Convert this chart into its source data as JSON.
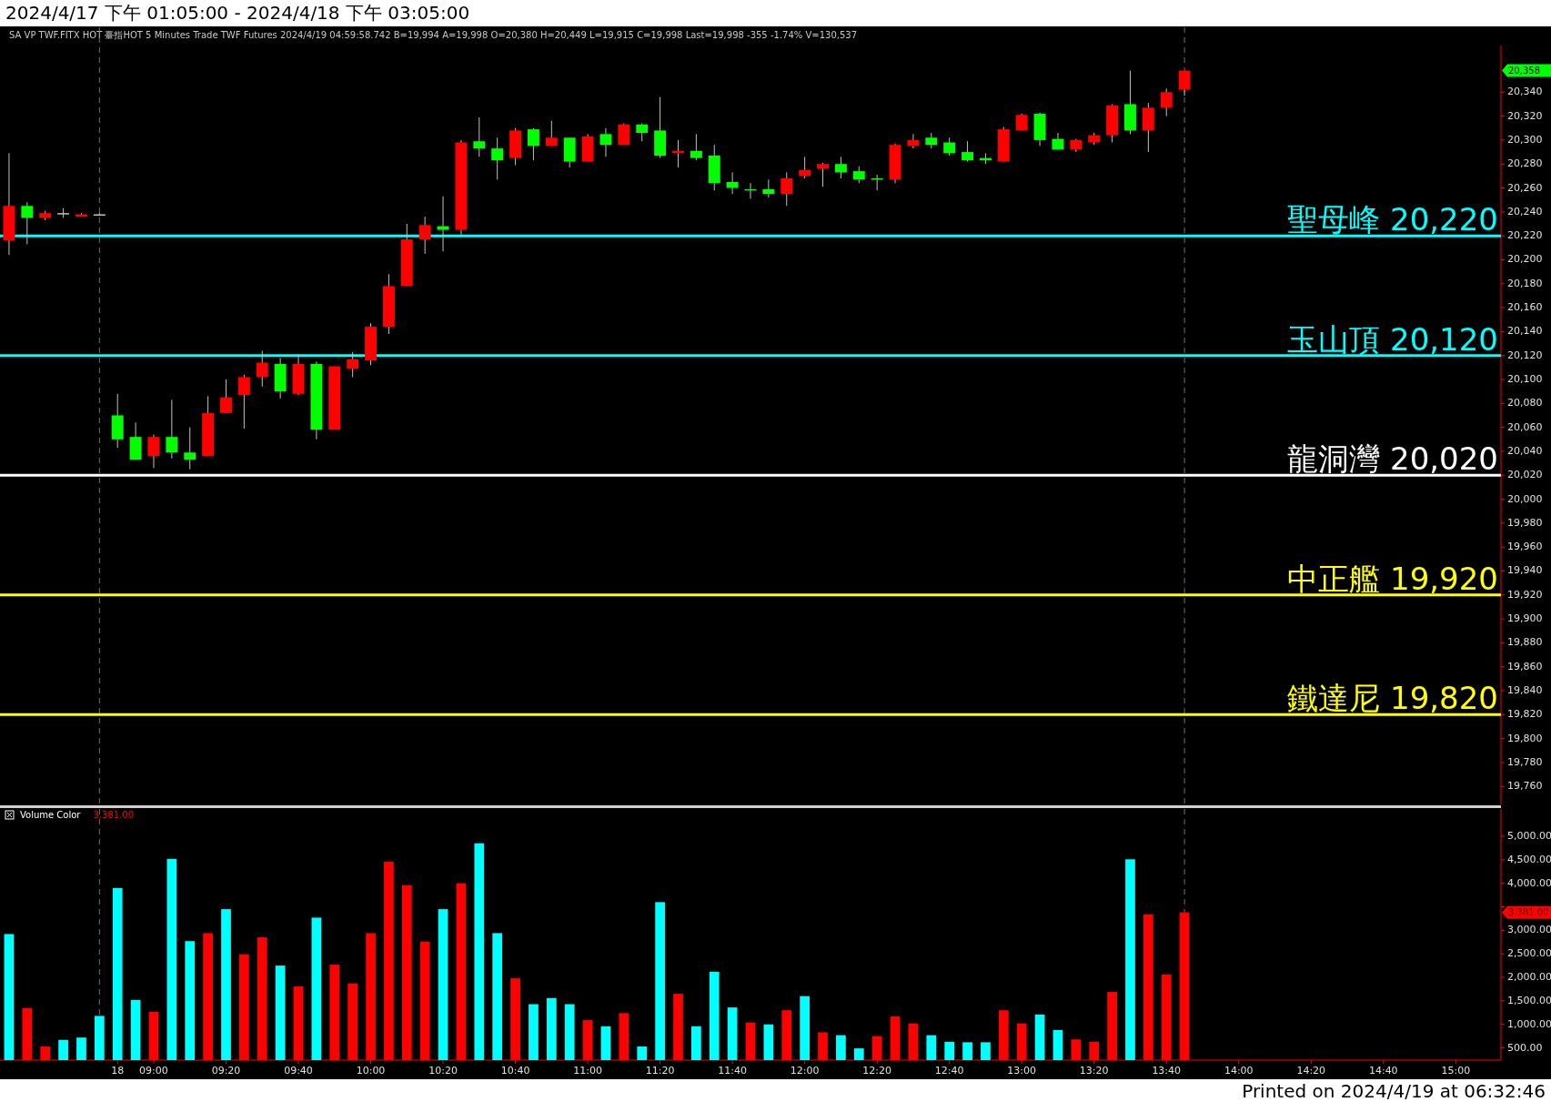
{
  "chart_data": [
    {
      "type": "candlestick",
      "title": "2024/4/17 下午 01:05:00 - 2024/4/18 下午 03:05:00",
      "subtitle": "SA  VP  TWF.FITX HOT  臺指HOT  5 Minutes  Trade  TWF  Futures  2024/4/19  04:59:58.742  B=19,994  A=19,998  O=20,380  H=20,449  L=19,915  C=19,998  Last=19,998  -355  -1.74%  V=130,537",
      "categories": [
        null,
        null,
        null,
        null,
        null,
        null,
        null,
        null,
        null,
        null,
        null,
        null,
        null,
        null,
        null,
        null,
        null,
        null,
        null,
        null,
        null,
        null,
        null,
        null,
        null,
        null,
        null,
        null,
        null,
        null,
        null,
        null,
        null,
        null,
        null,
        null,
        null,
        null,
        null,
        null,
        null,
        null,
        null,
        null,
        null,
        null,
        null,
        null,
        null,
        null,
        null,
        null,
        null,
        null,
        null,
        null,
        null,
        null,
        null,
        null,
        null,
        null,
        null,
        null,
        null,
        null,
        null,
        null,
        null,
        null,
        null,
        null,
        null,
        null,
        null,
        null,
        null,
        null,
        null,
        null,
        null,
        null,
        null
      ],
      "ohlc": [
        [
          20216,
          20289,
          20204,
          20245
        ],
        [
          20245,
          20248,
          20213,
          20235
        ],
        [
          20235,
          20241,
          20233,
          20239
        ],
        [
          20239,
          20243,
          20235,
          20239
        ],
        [
          20236,
          20239,
          20236,
          20238
        ],
        [
          20238,
          20239,
          20237,
          20238
        ],
        [
          20070,
          20088,
          20043,
          20050
        ],
        [
          20052,
          20064,
          20033,
          20033
        ],
        [
          20036,
          20054,
          20026,
          20052
        ],
        [
          20052,
          20083,
          20034,
          20039
        ],
        [
          20039,
          20060,
          20025,
          20033
        ],
        [
          20036,
          20086,
          20036,
          20072
        ],
        [
          20072,
          20100,
          20072,
          20085
        ],
        [
          20087,
          20104,
          20059,
          20102
        ],
        [
          20102,
          20124,
          20094,
          20114
        ],
        [
          20113,
          20118,
          20084,
          20090
        ],
        [
          20088,
          20121,
          20087,
          20113
        ],
        [
          20113,
          20115,
          20050,
          20058
        ],
        [
          20058,
          20111,
          20058,
          20111
        ],
        [
          20109,
          20123,
          20102,
          20117
        ],
        [
          20116,
          20147,
          20112,
          20144
        ],
        [
          20144,
          20188,
          20138,
          20178
        ],
        [
          20178,
          20230,
          20178,
          20217
        ],
        [
          20217,
          20236,
          20205,
          20229
        ],
        [
          20228,
          20253,
          20207,
          20225
        ],
        [
          20225,
          20300,
          20221,
          20298
        ],
        [
          20299,
          20319,
          20286,
          20293
        ],
        [
          20293,
          20302,
          20267,
          20283
        ],
        [
          20285,
          20310,
          20279,
          20308
        ],
        [
          20309,
          20310,
          20283,
          20295
        ],
        [
          20295,
          20316,
          20295,
          20302
        ],
        [
          20302,
          20302,
          20277,
          20282
        ],
        [
          20282,
          20305,
          20282,
          20303
        ],
        [
          20305,
          20310,
          20286,
          20296
        ],
        [
          20296,
          20314,
          20296,
          20313
        ],
        [
          20313,
          20314,
          20299,
          20306
        ],
        [
          20308,
          20336,
          20285,
          20287
        ],
        [
          20289,
          20300,
          20277,
          20291
        ],
        [
          20291,
          20305,
          20283,
          20285
        ],
        [
          20287,
          20296,
          20258,
          20264
        ],
        [
          20265,
          20273,
          20255,
          20260
        ],
        [
          20259,
          20264,
          20251,
          20258
        ],
        [
          20259,
          20267,
          20252,
          20255
        ],
        [
          20255,
          20273,
          20245,
          20268
        ],
        [
          20270,
          20286,
          20268,
          20275
        ],
        [
          20276,
          20281,
          20261,
          20280
        ],
        [
          20280,
          20286,
          20268,
          20273
        ],
        [
          20274,
          20278,
          20264,
          20267
        ],
        [
          20268,
          20271,
          20258,
          20267
        ],
        [
          20267,
          20297,
          20264,
          20296
        ],
        [
          20295,
          20305,
          20293,
          20300
        ],
        [
          20302,
          20306,
          20293,
          20296
        ],
        [
          20298,
          20302,
          20287,
          20289
        ],
        [
          20290,
          20299,
          20282,
          20283
        ],
        [
          20285,
          20289,
          20280,
          20283
        ],
        [
          20282,
          20311,
          20282,
          20309
        ],
        [
          20308,
          20322,
          20308,
          20321
        ],
        [
          20322,
          20323,
          20295,
          20300
        ],
        [
          20301,
          20306,
          20292,
          20292
        ],
        [
          20292,
          20301,
          20290,
          20300
        ],
        [
          20298,
          20306,
          20296,
          20304
        ],
        [
          20304,
          20330,
          20298,
          20329
        ],
        [
          20330,
          20358,
          20305,
          20308
        ],
        [
          20308,
          20331,
          20290,
          20327
        ],
        [
          20327,
          20343,
          20320,
          20340
        ],
        [
          20342,
          20358,
          20337,
          20358
        ],
        null,
        null,
        null,
        null,
        null,
        null,
        null,
        null,
        null,
        null,
        null,
        null,
        null,
        null,
        null,
        null,
        null
      ],
      "colors": [
        "#ff0000",
        "#00ff00",
        "#ff0000",
        "#c0c0c0",
        "#ff0000",
        "#c0c0c0",
        "#00ff00",
        "#00ff00",
        "#ff0000",
        "#00ff00",
        "#00ff00",
        "#ff0000",
        "#ff0000",
        "#ff0000",
        "#ff0000",
        "#00ff00",
        "#ff0000",
        "#00ff00",
        "#ff0000",
        "#ff0000",
        "#ff0000",
        "#ff0000",
        "#ff0000",
        "#ff0000",
        "#00ff00",
        "#ff0000",
        "#00ff00",
        "#00ff00",
        "#ff0000",
        "#00ff00",
        "#ff0000",
        "#00ff00",
        "#ff0000",
        "#00ff00",
        "#ff0000",
        "#00ff00",
        "#00ff00",
        "#ff0000",
        "#00ff00",
        "#00ff00",
        "#00ff00",
        "#00ff00",
        "#00ff00",
        "#ff0000",
        "#ff0000",
        "#ff0000",
        "#00ff00",
        "#00ff00",
        "#00ff00",
        "#ff0000",
        "#ff0000",
        "#00ff00",
        "#00ff00",
        "#00ff00",
        "#00ff00",
        "#ff0000",
        "#ff0000",
        "#00ff00",
        "#00ff00",
        "#ff0000",
        "#ff0000",
        "#ff0000",
        "#00ff00",
        "#ff0000",
        "#ff0000",
        "#ff0000",
        null,
        null,
        null,
        null,
        null,
        null,
        null,
        null,
        null,
        null,
        null,
        null,
        null,
        null,
        null,
        null,
        null
      ],
      "ylim": [
        19745,
        20379
      ],
      "yticks": [
        {
          "value": 19760,
          "label": "19,760"
        },
        {
          "value": 19780,
          "label": "19,780"
        },
        {
          "value": 19800,
          "label": "19,800"
        },
        {
          "value": 19820,
          "label": "19,820"
        },
        {
          "value": 19840,
          "label": "19,840"
        },
        {
          "value": 19860,
          "label": "19,860"
        },
        {
          "value": 19880,
          "label": "19,880"
        },
        {
          "value": 19900,
          "label": "19,900"
        },
        {
          "value": 19920,
          "label": "19,920"
        },
        {
          "value": 19940,
          "label": "19,940"
        },
        {
          "value": 19960,
          "label": "19,960"
        },
        {
          "value": 19980,
          "label": "19,980"
        },
        {
          "value": 20000,
          "label": "20,000"
        },
        {
          "value": 20020,
          "label": "20,020"
        },
        {
          "value": 20040,
          "label": "20,040"
        },
        {
          "value": 20060,
          "label": "20,060"
        },
        {
          "value": 20080,
          "label": "20,080"
        },
        {
          "value": 20100,
          "label": "20,100"
        },
        {
          "value": 20120,
          "label": "20,120"
        },
        {
          "value": 20140,
          "label": "20,140"
        },
        {
          "value": 20160,
          "label": "20,160"
        },
        {
          "value": 20180,
          "label": "20,180"
        },
        {
          "value": 20200,
          "label": "20,200"
        },
        {
          "value": 20220,
          "label": "20,220"
        },
        {
          "value": 20240,
          "label": "20,240"
        },
        {
          "value": 20260,
          "label": "20,260"
        },
        {
          "value": 20280,
          "label": "20,280"
        },
        {
          "value": 20300,
          "label": "20,300"
        },
        {
          "value": 20320,
          "label": "20,320"
        },
        {
          "value": 20340,
          "label": "20,340"
        }
      ],
      "ref_lines": [
        {
          "axis": "y",
          "value": 20220,
          "label": "聖母峰 20,220",
          "color": "#00ffff"
        },
        {
          "axis": "y",
          "value": 20120,
          "label": "玉山頂 20,120",
          "color": "#00ffff"
        },
        {
          "axis": "y",
          "value": 20020,
          "label": "龍洞灣 20,020",
          "color": "#ffffff"
        },
        {
          "axis": "y",
          "value": 19920,
          "label": "中正艦 19,920",
          "color": "#ffff00"
        },
        {
          "axis": "y",
          "value": 19820,
          "label": "鐵達尼 19,820",
          "color": "#ffff00"
        }
      ],
      "annotations": [
        "20,358"
      ],
      "tick_labels": "y"
    },
    {
      "type": "bar",
      "categories": [
        null,
        null,
        null,
        null,
        null,
        null,
        "18",
        null,
        "09:00",
        null,
        null,
        null,
        "09:20",
        null,
        null,
        null,
        "09:40",
        null,
        null,
        null,
        "10:00",
        null,
        null,
        null,
        "10:20",
        null,
        null,
        null,
        "10:40",
        null,
        null,
        null,
        "11:00",
        null,
        null,
        null,
        "11:20",
        null,
        null,
        null,
        "11:40",
        null,
        null,
        null,
        "12:00",
        null,
        null,
        null,
        "12:20",
        null,
        null,
        null,
        "12:40",
        null,
        null,
        null,
        "13:00",
        null,
        null,
        null,
        "13:20",
        null,
        null,
        null,
        "13:40",
        null,
        null,
        null,
        "14:00",
        null,
        null,
        null,
        "14:20",
        null,
        null,
        null,
        "14:40",
        null,
        null,
        null,
        "15:00",
        null,
        null
      ],
      "series": [
        {
          "name": "Volume Color",
          "values": [
            2920,
            1350,
            530,
            670,
            720,
            1180,
            3900,
            1520,
            1270,
            4520,
            2770,
            2940,
            3450,
            2490,
            2850,
            2250,
            1810,
            3270,
            2270,
            1870,
            2940,
            4460,
            3960,
            2760,
            3450,
            4000,
            4850,
            2940,
            1980,
            1430,
            1560,
            1430,
            1090,
            960,
            1240,
            530,
            3600,
            1650,
            960,
            2120,
            1360,
            1040,
            1000,
            1300,
            1600,
            830,
            770,
            490,
            750,
            1170,
            1020,
            770,
            630,
            620,
            620,
            1300,
            1020,
            1210,
            880,
            680,
            630,
            1690,
            4510,
            3340,
            2060,
            3381,
            null,
            null,
            null,
            null,
            null,
            null,
            null,
            null,
            null,
            null,
            null,
            null,
            null,
            null,
            null,
            null,
            null
          ],
          "colors": [
            "#00ffff",
            "#ff0000",
            "#ff0000",
            "#00ffff",
            "#00ffff",
            "#00ffff",
            "#00ffff",
            "#00ffff",
            "#ff0000",
            "#00ffff",
            "#00ffff",
            "#ff0000",
            "#00ffff",
            "#ff0000",
            "#ff0000",
            "#00ffff",
            "#ff0000",
            "#00ffff",
            "#ff0000",
            "#ff0000",
            "#ff0000",
            "#ff0000",
            "#ff0000",
            "#ff0000",
            "#00ffff",
            "#ff0000",
            "#00ffff",
            "#00ffff",
            "#ff0000",
            "#00ffff",
            "#00ffff",
            "#00ffff",
            "#ff0000",
            "#00ffff",
            "#ff0000",
            "#00ffff",
            "#00ffff",
            "#ff0000",
            "#00ffff",
            "#00ffff",
            "#00ffff",
            "#ff0000",
            "#00ffff",
            "#ff0000",
            "#00ffff",
            "#ff0000",
            "#00ffff",
            "#00ffff",
            "#ff0000",
            "#ff0000",
            "#ff0000",
            "#00ffff",
            "#00ffff",
            "#00ffff",
            "#00ffff",
            "#ff0000",
            "#ff0000",
            "#00ffff",
            "#00ffff",
            "#ff0000",
            "#ff0000",
            "#ff0000",
            "#00ffff",
            "#ff0000",
            "#ff0000",
            "#ff0000",
            null,
            null,
            null,
            null,
            null,
            null,
            null,
            null,
            null,
            null,
            null,
            null,
            null,
            null,
            null,
            null,
            null
          ]
        }
      ],
      "ylim": [
        240,
        5580
      ],
      "yticks": [
        {
          "value": 500,
          "label": "500.00"
        },
        {
          "value": 1000,
          "label": "1,000.00"
        },
        {
          "value": 1500,
          "label": "1,500.00"
        },
        {
          "value": 2000,
          "label": "2,000.00"
        },
        {
          "value": 2500,
          "label": "2,500.00"
        },
        {
          "value": 3000,
          "label": "3,000.00"
        },
        {
          "value": 3500,
          "label": null
        },
        {
          "value": 4000,
          "label": "4,000.00"
        },
        {
          "value": 4500,
          "label": "4,500.00"
        },
        {
          "value": 5000,
          "label": "5,000.00"
        }
      ],
      "legend": "top left",
      "annotations": [
        "3,381.00",
        "3,381.00",
        "Printed on 2024/4/19 at 06:32:46"
      ]
    }
  ]
}
